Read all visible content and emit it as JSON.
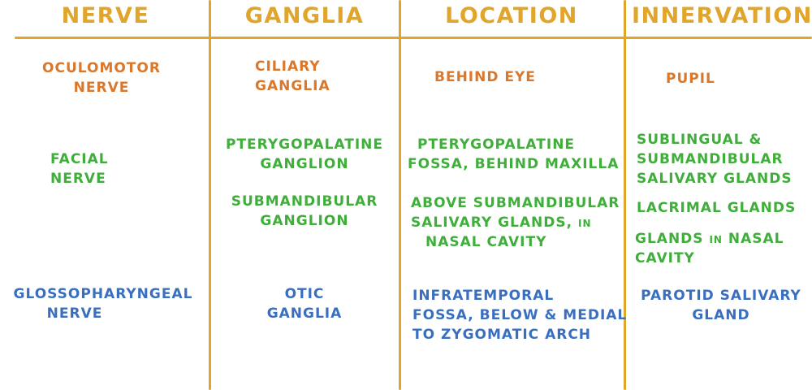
{
  "colors": {
    "gridline": "#e0a52a",
    "header": "#e0a52a",
    "oculomotor_row": "#d9782c",
    "facial_row": "#3fae3a",
    "glossopharyngeal_row": "#3a6fc0"
  },
  "headers": {
    "nerve": "NERVE",
    "ganglia": "GANGLIA",
    "location": "LOCATION",
    "innervation": "INNERVATION"
  },
  "rows": {
    "oculomotor": {
      "nerve": [
        "OCULOMOTOR",
        "NERVE"
      ],
      "ganglia": [
        "CILIARY",
        "GANGLIA"
      ],
      "location": [
        "BEHIND EYE"
      ],
      "innervation": [
        "PUPIL"
      ]
    },
    "facial": {
      "nerve": [
        "FACIAL",
        "NERVE"
      ],
      "ganglia_1": [
        "PTERYGOPALATINE",
        "GANGLION"
      ],
      "ganglia_2": [
        "SUBMANDIBULAR",
        "GANGLION"
      ],
      "location_1": [
        "PTERYGOPALATINE",
        "FOSSA, BEHIND MAXILLA"
      ],
      "location_2": [
        "ABOVE SUBMANDIBULAR",
        "SALIVARY GLANDS, in",
        "NASAL CAVITY"
      ],
      "innervation_1": [
        "SUBLINGUAL &",
        "SUBMANDIBULAR",
        "SALIVARY GLANDS"
      ],
      "innervation_2": [
        "LACRIMAL GLANDS"
      ],
      "innervation_3": [
        "GLANDS in NASAL",
        "CAVITY"
      ]
    },
    "glossopharyngeal": {
      "nerve": [
        "GLOSSOPHARYNGEAL",
        "NERVE"
      ],
      "ganglia": [
        "OTIC",
        "GANGLIA"
      ],
      "location": [
        "INFRATEMPORAL",
        "FOSSA, BELOW & MEDIAL",
        "TO ZYGOMATIC ARCH"
      ],
      "innervation": [
        "PAROTID SALIVARY",
        "GLAND"
      ]
    }
  }
}
